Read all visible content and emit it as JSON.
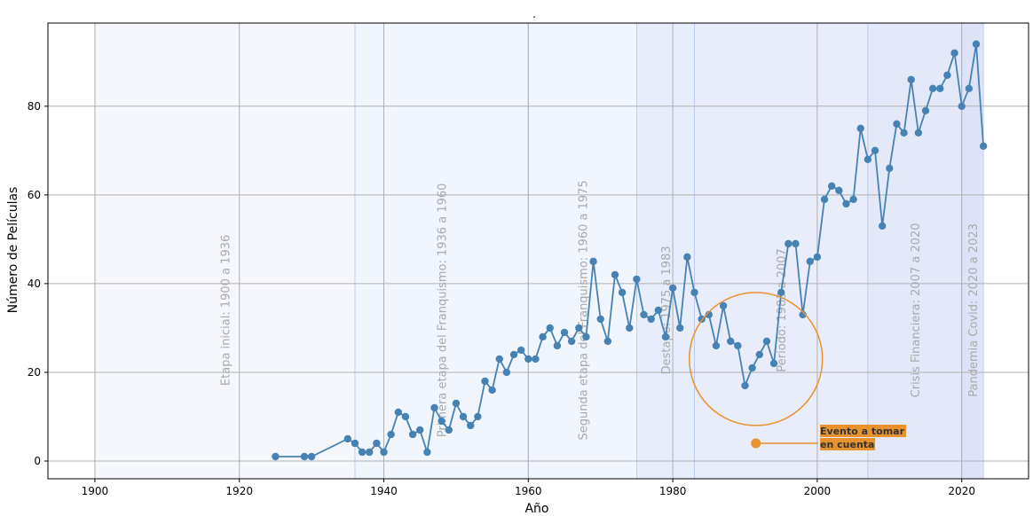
{
  "chart_data": {
    "type": "line",
    "title": ".",
    "xlabel": "Año",
    "ylabel": "Número de Películas",
    "xlim": [
      1893.75,
      1929.25
    ],
    "ylim": [
      -4.0,
      98.75
    ],
    "xticks": [
      1900,
      1920,
      1940,
      1960,
      1980,
      2000,
      2020
    ],
    "yticks": [
      0,
      20,
      40,
      60,
      80
    ],
    "grid": true,
    "series": [
      {
        "color": "#4682b4",
        "points": [
          [
            1925,
            1
          ],
          [
            1929,
            1
          ],
          [
            1930,
            1
          ],
          [
            1935,
            5
          ],
          [
            1936,
            4
          ],
          [
            1937,
            2
          ],
          [
            1938,
            2
          ],
          [
            1939,
            4
          ],
          [
            1940,
            2
          ],
          [
            1941,
            6
          ],
          [
            1942,
            11
          ],
          [
            1943,
            10
          ],
          [
            1944,
            6
          ],
          [
            1945,
            7
          ],
          [
            1946,
            2
          ],
          [
            1947,
            12
          ],
          [
            1948,
            9
          ],
          [
            1949,
            7
          ],
          [
            1950,
            13
          ],
          [
            1951,
            10
          ],
          [
            1952,
            8
          ],
          [
            1953,
            10
          ],
          [
            1954,
            18
          ],
          [
            1955,
            16
          ],
          [
            1956,
            23
          ],
          [
            1957,
            20
          ],
          [
            1958,
            24
          ],
          [
            1959,
            25
          ],
          [
            1960,
            23
          ],
          [
            1961,
            23
          ],
          [
            1962,
            28
          ],
          [
            1963,
            30
          ],
          [
            1964,
            26
          ],
          [
            1965,
            29
          ],
          [
            1966,
            27
          ],
          [
            1967,
            30
          ],
          [
            1968,
            28
          ],
          [
            1969,
            45
          ],
          [
            1970,
            32
          ],
          [
            1971,
            27
          ],
          [
            1972,
            42
          ],
          [
            1973,
            38
          ],
          [
            1974,
            30
          ],
          [
            1975,
            41
          ],
          [
            1976,
            33
          ],
          [
            1977,
            32
          ],
          [
            1978,
            34
          ],
          [
            1979,
            28
          ],
          [
            1980,
            39
          ],
          [
            1981,
            30
          ],
          [
            1982,
            46
          ],
          [
            1983,
            38
          ],
          [
            1984,
            32
          ],
          [
            1985,
            33
          ],
          [
            1986,
            26
          ],
          [
            1987,
            35
          ],
          [
            1988,
            27
          ],
          [
            1989,
            26
          ],
          [
            1990,
            17
          ],
          [
            1991,
            21
          ],
          [
            1992,
            24
          ],
          [
            1993,
            27
          ],
          [
            1994,
            22
          ],
          [
            1995,
            38
          ],
          [
            1996,
            49
          ],
          [
            1997,
            49
          ],
          [
            1998,
            33
          ],
          [
            1999,
            45
          ],
          [
            2000,
            46
          ],
          [
            2001,
            59
          ],
          [
            2002,
            62
          ],
          [
            2003,
            61
          ],
          [
            2004,
            58
          ],
          [
            2005,
            59
          ],
          [
            2006,
            75
          ],
          [
            2007,
            68
          ],
          [
            2008,
            70
          ],
          [
            2009,
            53
          ],
          [
            2010,
            66
          ],
          [
            2011,
            76
          ],
          [
            2012,
            74
          ],
          [
            2013,
            86
          ],
          [
            2014,
            74
          ],
          [
            2015,
            79
          ],
          [
            2016,
            84
          ],
          [
            2017,
            84
          ],
          [
            2018,
            87
          ],
          [
            2019,
            92
          ],
          [
            2020,
            80
          ],
          [
            2021,
            84
          ],
          [
            2022,
            94
          ],
          [
            2023,
            71
          ]
        ]
      }
    ],
    "periods": [
      {
        "label": "Etapa inicial: 1900 a 1936",
        "start": 1900,
        "end": 1936,
        "color": "#eef1fc",
        "opacity": 0.6
      },
      {
        "label": "Primera etapa del Franquismo: 1936 a 1960",
        "start": 1936,
        "end": 1960,
        "color": "#e8eefb",
        "opacity": 0.6
      },
      {
        "label": "Segunda etapa del Franquismo: 1960 a 1975",
        "start": 1960,
        "end": 1975,
        "color": "#e8eefb",
        "opacity": 0.6
      },
      {
        "label": "Destape: 1975 a 1983",
        "start": 1975,
        "end": 1983,
        "color": "#dde6fa",
        "opacity": 0.7
      },
      {
        "label": "Periodo: 1983 a 2007",
        "start": 1983,
        "end": 2007,
        "color": "#dfe5fa",
        "opacity": 0.7
      },
      {
        "label": "Crisis Financiera: 2007 a 2020",
        "start": 2007,
        "end": 2020,
        "color": "#dbe1f8",
        "opacity": 0.75
      },
      {
        "label": "Pandemia Covid: 2020 a 2023",
        "start": 2020,
        "end": 2023,
        "color": "#d6dcf5",
        "opacity": 0.8
      }
    ],
    "period_label_y": 37,
    "annotation": {
      "text_lines": [
        "Evento a tomar",
        "en cuenta"
      ],
      "circle_center": [
        1991.5,
        23
      ],
      "point": [
        1991.5,
        4
      ],
      "text_anchor": [
        2001,
        4
      ],
      "color": "#e8922e"
    }
  }
}
